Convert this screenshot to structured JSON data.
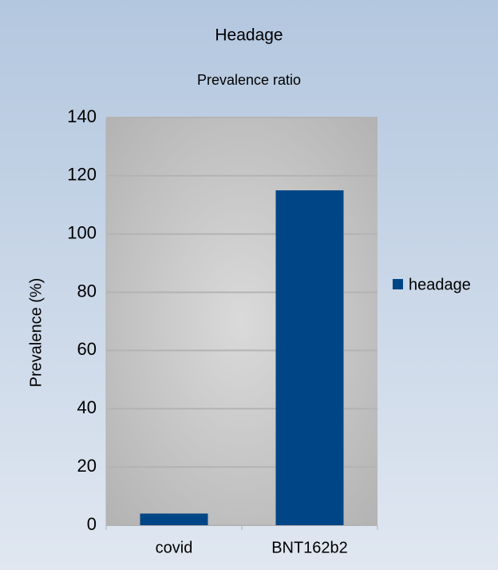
{
  "chart_data": {
    "type": "bar",
    "title": "Headage",
    "subtitle": "Prevalence ratio",
    "y_label": "Prevalence (%)",
    "categories": [
      "covid",
      "BNT162b2"
    ],
    "series": [
      {
        "name": "headage",
        "color": "#004586",
        "values": [
          4,
          115
        ]
      }
    ],
    "ylim": [
      0,
      140
    ],
    "yticks": [
      0,
      20,
      40,
      60,
      80,
      100,
      120,
      140
    ],
    "grid": true,
    "legend": "right"
  }
}
